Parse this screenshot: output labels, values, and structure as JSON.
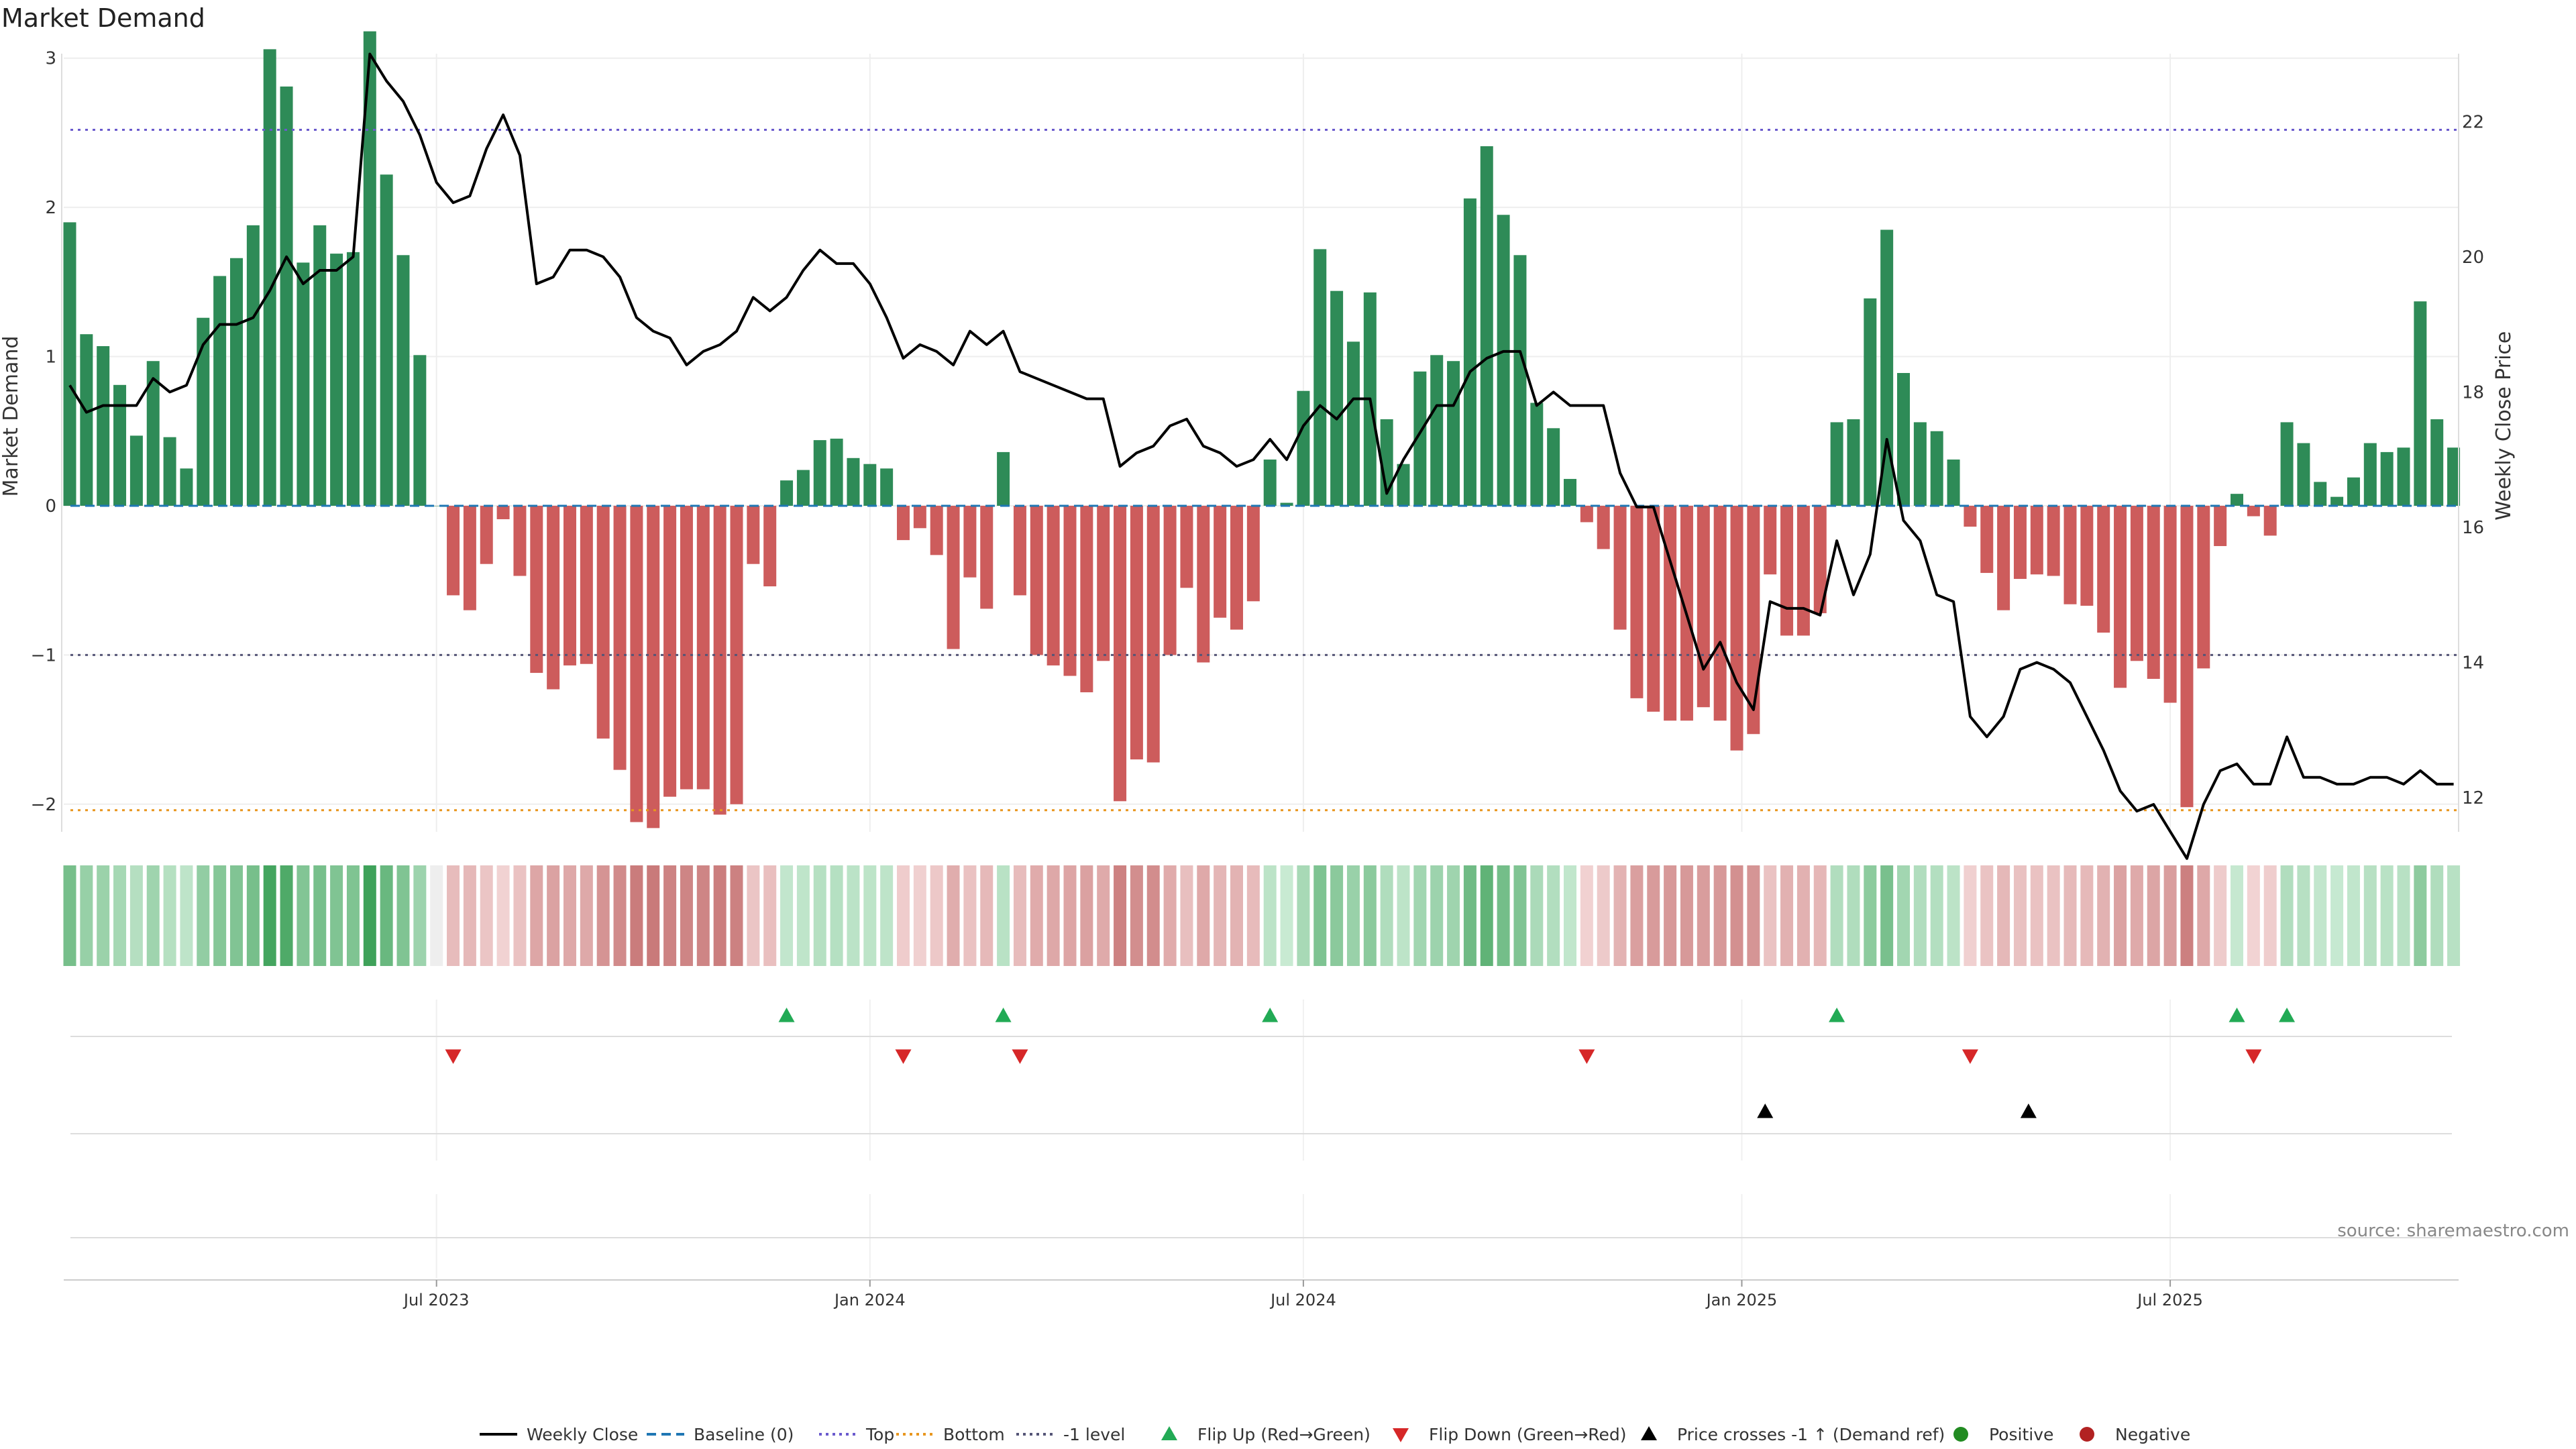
{
  "chart_data": {
    "type": "bar",
    "title": "Market Demand",
    "ylabel_left": "Market Demand",
    "ylabel_right": "Weekly Close Price",
    "ylim_left": [
      -2.5,
      3.3
    ],
    "ylim_right": [
      10.8,
      23.6
    ],
    "left_ticks": [
      3,
      2,
      1,
      0,
      -1,
      -2
    ],
    "left_tick_labels": [
      "3",
      "2",
      "1",
      "0",
      "−1",
      "−2"
    ],
    "right_ticks": [
      22,
      20,
      18,
      16,
      14,
      12
    ],
    "right_tick_labels": [
      "22",
      "20",
      "18",
      "16",
      "14",
      "12"
    ],
    "levels": {
      "top": 2.52,
      "bottom": -2.04,
      "minus_one": -1.0,
      "baseline": 0
    },
    "start_week": "2023-03-13",
    "x_tick_labels": [
      "Jul 2023",
      "Jan 2024",
      "Jul 2024",
      "Jan 2025",
      "Jul 2025"
    ],
    "x_tick_weeks": [
      22,
      48,
      74,
      100.3,
      126
    ],
    "demand": [
      1.9,
      1.15,
      1.07,
      0.81,
      0.47,
      0.97,
      0.46,
      0.25,
      1.26,
      1.54,
      1.66,
      1.88,
      3.06,
      2.81,
      1.63,
      1.88,
      1.69,
      1.7,
      3.18,
      2.22,
      1.68,
      1.01,
      0,
      -0.6,
      -0.7,
      -0.39,
      -0.09,
      -0.47,
      -1.12,
      -1.23,
      -1.07,
      -1.06,
      -1.56,
      -1.77,
      -2.12,
      -2.16,
      -1.95,
      -1.9,
      -1.9,
      -2.07,
      -2.0,
      -0.39,
      -0.54,
      0.17,
      0.24,
      0.44,
      0.45,
      0.32,
      0.28,
      0.25,
      -0.23,
      -0.15,
      -0.33,
      -0.96,
      -0.48,
      -0.69,
      0.36,
      -0.6,
      -1.0,
      -1.07,
      -1.14,
      -1.25,
      -1.04,
      -1.98,
      -1.7,
      -1.72,
      -1.0,
      -0.55,
      -1.05,
      -0.75,
      -0.83,
      -0.64,
      0.31,
      0.02,
      0.77,
      1.72,
      1.44,
      1.1,
      1.43,
      0.58,
      0.28,
      0.9,
      1.01,
      0.97,
      2.06,
      2.41,
      1.95,
      1.68,
      0.69,
      0.52,
      0.18,
      -0.11,
      -0.29,
      -0.83,
      -1.29,
      -1.38,
      -1.44,
      -1.44,
      -1.35,
      -1.44,
      -1.64,
      -1.53,
      -0.46,
      -0.87,
      -0.87,
      -0.72,
      0.56,
      0.58,
      1.39,
      1.85,
      0.89,
      0.56,
      0.5,
      0.31,
      -0.14,
      -0.45,
      -0.7,
      -0.49,
      -0.46,
      -0.47,
      -0.66,
      -0.67,
      -0.85,
      -1.22,
      -1.04,
      -1.16,
      -1.32,
      -2.02,
      -1.09,
      -0.27,
      0.08,
      -0.07,
      -0.2,
      0.56,
      0.42,
      0.16,
      0.06,
      0.19,
      0.42,
      0.36,
      0.39,
      1.37,
      0.58,
      0.39
    ],
    "price": [
      18.1,
      17.7,
      17.8,
      17.8,
      17.8,
      18.2,
      18.0,
      18.1,
      18.7,
      19.0,
      19.0,
      19.1,
      19.5,
      20.0,
      19.6,
      19.8,
      19.8,
      20.0,
      23.0,
      22.6,
      22.3,
      21.8,
      21.1,
      20.8,
      20.9,
      21.6,
      22.1,
      21.5,
      19.6,
      19.7,
      20.1,
      20.1,
      20.0,
      19.7,
      19.1,
      18.9,
      18.8,
      18.4,
      18.6,
      18.7,
      18.9,
      19.4,
      19.2,
      19.4,
      19.8,
      20.1,
      19.9,
      19.9,
      19.6,
      19.1,
      18.5,
      18.7,
      18.6,
      18.4,
      18.9,
      18.7,
      18.9,
      18.3,
      18.2,
      18.1,
      18.0,
      17.9,
      17.9,
      16.9,
      17.1,
      17.2,
      17.5,
      17.6,
      17.2,
      17.1,
      16.9,
      17.0,
      17.3,
      17.0,
      17.5,
      17.8,
      17.6,
      17.9,
      17.9,
      16.5,
      17.0,
      17.4,
      17.8,
      17.8,
      18.3,
      18.5,
      18.6,
      18.6,
      17.8,
      18.0,
      17.8,
      17.8,
      17.8,
      16.8,
      16.3,
      16.3,
      15.5,
      14.7,
      13.9,
      14.3,
      13.7,
      13.3,
      14.9,
      14.8,
      14.8,
      14.7,
      15.8,
      15.0,
      15.6,
      17.3,
      16.1,
      15.8,
      15.0,
      14.9,
      13.2,
      12.9,
      13.2,
      13.9,
      14.0,
      13.9,
      13.7,
      13.2,
      12.7,
      12.1,
      11.8,
      11.9,
      11.5,
      11.1,
      11.9,
      12.4,
      12.5,
      12.2,
      12.2,
      12.9,
      12.3,
      12.3,
      12.2,
      12.2,
      12.3,
      12.3,
      12.2,
      12.4,
      12.2,
      12.2
    ],
    "flip_up_weeks": [
      43,
      56,
      72,
      106,
      130,
      133
    ],
    "flip_down_weeks": [
      23,
      50,
      57,
      91,
      114,
      131
    ],
    "price_cross_weeks": [
      101.7,
      117.5
    ],
    "legend": [
      "Weekly Close",
      "Baseline (0)",
      "Top",
      "Bottom",
      "-1 level",
      "Flip Up (Red→Green)",
      "Flip Down (Green→Red)",
      "Price crosses -1 ↑ (Demand ref)",
      "Positive",
      "Negative"
    ]
  },
  "colors": {
    "positive": "#2e8b57",
    "negative": "#cd5c5c",
    "price": "#000000",
    "baseline": "#1f77b4",
    "top": "#6a5acd",
    "bottom": "#e8961e",
    "minus_one": "#555577",
    "flip_up": "#22aa55",
    "flip_down": "#d62728",
    "cross": "#000000",
    "legend_positive": "#228b22",
    "legend_negative": "#b22222"
  },
  "source": "source: sharemaestro.com"
}
